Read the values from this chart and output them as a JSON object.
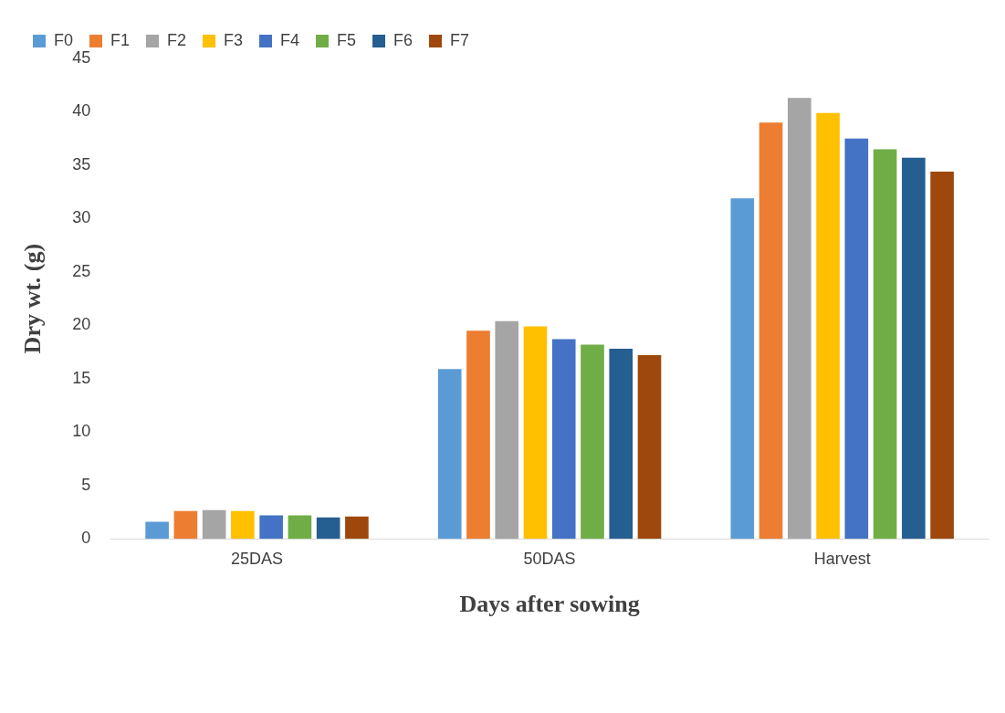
{
  "chart_data": {
    "type": "bar",
    "xlabel": "Days after sowing",
    "ylabel": "Dry wt. (g)",
    "categories": [
      "25DAS",
      "50DAS",
      "Harvest"
    ],
    "ylim": [
      0,
      45
    ],
    "yticks": [
      0,
      5,
      10,
      15,
      20,
      25,
      30,
      35,
      40,
      45
    ],
    "grid": false,
    "legend": "top",
    "series": [
      {
        "name": "F0",
        "color": "#5b9bd5",
        "values": [
          1.6,
          15.9,
          31.9
        ]
      },
      {
        "name": "F1",
        "color": "#ed7d31",
        "values": [
          2.6,
          19.5,
          39.0
        ]
      },
      {
        "name": "F2",
        "color": "#a5a5a5",
        "values": [
          2.7,
          20.4,
          41.3
        ]
      },
      {
        "name": "F3",
        "color": "#ffc000",
        "values": [
          2.6,
          19.9,
          39.9
        ]
      },
      {
        "name": "F4",
        "color": "#4472c4",
        "values": [
          2.2,
          18.7,
          37.5
        ]
      },
      {
        "name": "F5",
        "color": "#70ad47",
        "values": [
          2.2,
          18.2,
          36.5
        ]
      },
      {
        "name": "F6",
        "color": "#255e91",
        "values": [
          2.0,
          17.8,
          35.7
        ]
      },
      {
        "name": "F7",
        "color": "#9e480e",
        "values": [
          2.1,
          17.2,
          34.4
        ]
      }
    ]
  }
}
